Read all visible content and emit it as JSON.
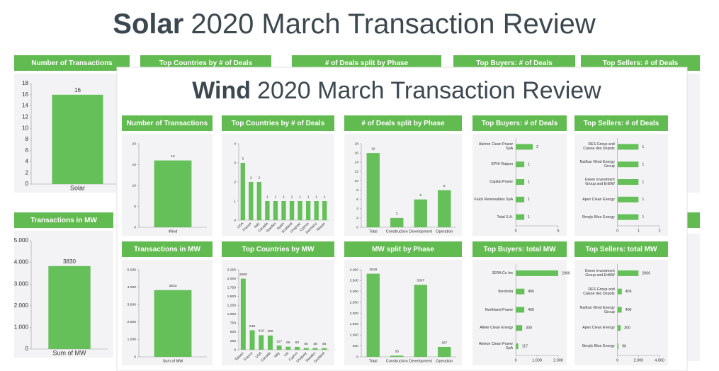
{
  "solar_title": {
    "bold": "Solar",
    "rest": "2020 March Transaction Review"
  },
  "wind_title": {
    "bold": "Wind",
    "rest": "2020 March Transaction Review"
  },
  "solar_hidden_panels": [
    "Top Countries by # of Deals",
    "# of Deals split by Phase",
    "Top Buyers: # of Deals",
    "Top Sellers: # of Deals"
  ],
  "chart_data": [
    {
      "type": "bar",
      "title": "Number of Transactions",
      "categories": [
        "Solar"
      ],
      "values": [
        16
      ],
      "color": "#66c05a",
      "ylim": [
        0,
        18
      ],
      "yticks": [
        0,
        2,
        4,
        6,
        8,
        10,
        12,
        14,
        16,
        18
      ]
    },
    {
      "type": "bar",
      "title": "Transactions in MW",
      "categories": [
        "Sum of MW"
      ],
      "values": [
        3830
      ],
      "color": "#66c05a",
      "ylim": [
        0,
        5000
      ],
      "yticks": [
        0,
        {
          "value": 1000,
          "label": "1.000"
        },
        {
          "value": 2000,
          "label": "2.000"
        },
        {
          "value": 3000,
          "label": "3.000"
        },
        {
          "value": 4000,
          "label": "4.000"
        },
        {
          "value": 5000,
          "label": "5.000"
        }
      ]
    },
    {
      "type": "bar",
      "title": "Number of Transactions",
      "categories": [
        "Wind"
      ],
      "values": [
        16
      ],
      "color": "#66c05a",
      "ylim": [
        0,
        20
      ],
      "yticks": [
        0,
        5,
        10,
        15,
        20
      ]
    },
    {
      "type": "bar",
      "title": "Top Countries by # of Deals",
      "categories": [
        "USA",
        "France",
        "Italy",
        "Canada",
        "Sweden",
        "Spain",
        "Scotland",
        "Uruguay",
        "Cyprus",
        "Germany",
        "Taiwan"
      ],
      "values": [
        3,
        2,
        2,
        1,
        1,
        1,
        1,
        1,
        1,
        1,
        1
      ],
      "color": "#66c05a",
      "rotate_labels": true,
      "ylim": [
        0,
        4
      ],
      "yticks": [
        0,
        1,
        2,
        3,
        4
      ]
    },
    {
      "type": "bar",
      "title": "# of Deals split by Phase",
      "categories": [
        "Total",
        "Construction",
        "Development",
        "Operation"
      ],
      "values": [
        16,
        2,
        6,
        8
      ],
      "color": "#66c05a",
      "ylim": [
        0,
        18
      ],
      "yticks": [
        0,
        2,
        4,
        6,
        8,
        10,
        12,
        14,
        16,
        18
      ]
    },
    {
      "type": "barh",
      "title": "Top Buyers: # of Deals",
      "categories": [
        "Alerion Clean Power SpA",
        "EPH/ Ralpon",
        "Capital Power",
        "Falck Renewables SpA",
        "Total S.A."
      ],
      "values": [
        2,
        1,
        1,
        1,
        1
      ],
      "color": "#66c05a",
      "xlim": [
        0,
        5
      ],
      "xticks": [
        0,
        5
      ]
    },
    {
      "type": "barh",
      "title": "Top Sellers: # of Deals",
      "categories": [
        "RES Group and Caisse des Depots",
        "NaiKun Wind Energy Group",
        "Green Investment Group and EnBW",
        "Apex Clean Energy",
        "Simply Blue Energy"
      ],
      "values": [
        1,
        1,
        1,
        1,
        1
      ],
      "color": "#66c05a",
      "xlim": [
        0,
        2
      ],
      "xticks": [
        0,
        1,
        2
      ]
    },
    {
      "type": "bar",
      "title": "Transactions in MW",
      "categories": [
        "Sum of MW"
      ],
      "values": [
        3833
      ],
      "color": "#66c05a",
      "ylim": [
        0,
        5000
      ],
      "yticks": [
        0,
        {
          "value": 1000,
          "label": "1.000"
        },
        {
          "value": 2000,
          "label": "2.000"
        },
        {
          "value": 3000,
          "label": "3.000"
        },
        {
          "value": 4000,
          "label": "4.000"
        },
        {
          "value": 5000,
          "label": "5.000"
        }
      ]
    },
    {
      "type": "bar",
      "title": "Top Countries by MW",
      "categories": [
        "Taiwan",
        "France",
        "USA",
        "Canada",
        "Italy",
        "UK",
        "Cyprus",
        "Uruguay",
        "Sweden",
        "Scotland"
      ],
      "values": [
        2000,
        548,
        410,
        400,
        117,
        86,
        82,
        50,
        48,
        46
      ],
      "color": "#66c05a",
      "rotate_labels": true,
      "ylim": [
        0,
        2250
      ],
      "yticks": [
        0,
        250,
        500,
        750,
        {
          "value": 1000,
          "label": "1.000"
        },
        {
          "value": 1250,
          "label": "1.250"
        },
        {
          "value": 1500,
          "label": "1.500"
        },
        {
          "value": 1750,
          "label": "1.750"
        },
        {
          "value": 2000,
          "label": "2.000"
        },
        {
          "value": 2250,
          "label": "2.250"
        }
      ]
    },
    {
      "type": "bar",
      "title": "MW split by Phase",
      "categories": [
        "Total",
        "Construction",
        "Development",
        "Operation"
      ],
      "values": [
        3819,
        55,
        3307,
        457
      ],
      "color": "#66c05a",
      "ylim": [
        0,
        4000
      ],
      "yticks": [
        0,
        500,
        {
          "value": 1000,
          "label": "1.000"
        },
        {
          "value": 1500,
          "label": "1.500"
        },
        {
          "value": 2000,
          "label": "2.000"
        },
        {
          "value": 2500,
          "label": "2.500"
        },
        {
          "value": 3000,
          "label": "3.000"
        },
        {
          "value": 3500,
          "label": "3.500"
        },
        {
          "value": 4000,
          "label": "4.000"
        }
      ]
    },
    {
      "type": "barh",
      "title": "Top Buyers: total MW",
      "categories": [
        "JERA Co Inc",
        "Iberdrola",
        "Northland Power",
        "Allete Clean Energy",
        "Alerion Clean Power SpA"
      ],
      "values": [
        2000,
        406,
        400,
        300,
        117
      ],
      "color": "#66c05a",
      "xlim": [
        0,
        2000
      ],
      "xticks": [
        0,
        {
          "value": 1000,
          "label": "1.000"
        },
        {
          "value": 2000,
          "label": "2.000"
        }
      ]
    },
    {
      "type": "barh",
      "title": "Top Sellers: total MW",
      "categories": [
        "Green Investment Group and EnBW",
        "RES Group and Caisse des Depots",
        "NaiKun Wind Energy Group",
        "Apex Clean Energy",
        "Simply Blue Energy"
      ],
      "values": [
        2000,
        406,
        400,
        300,
        96
      ],
      "color": "#66c05a",
      "xlim": [
        0,
        4000
      ],
      "xticks": [
        0,
        {
          "value": 2000,
          "label": "2.000"
        },
        {
          "value": 4000,
          "label": "4.000"
        }
      ]
    }
  ]
}
